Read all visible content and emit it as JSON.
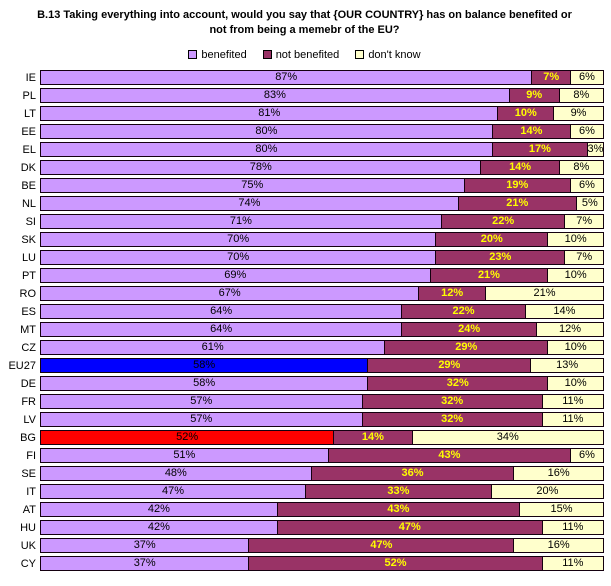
{
  "title": {
    "line1": "B.13 Taking everything into account, would you say that {OUR COUNTRY} has on balance benefited or",
    "line2": "not from being a memebr of the EU?"
  },
  "legend": [
    {
      "key": "benefited",
      "label": "benefited",
      "color": "#CC99FF"
    },
    {
      "key": "not_benefited",
      "label": "not benefited",
      "color": "#993366"
    },
    {
      "key": "dont_know",
      "label": "don't know",
      "color": "#FFFFCC"
    }
  ],
  "chart_data": {
    "type": "bar",
    "orientation": "horizontal",
    "stacked": true,
    "xlim": [
      0,
      100
    ],
    "unit": "%",
    "grid": false,
    "legend_position": "top",
    "categories": [
      "IE",
      "PL",
      "LT",
      "EE",
      "EL",
      "DK",
      "BE",
      "NL",
      "SI",
      "SK",
      "LU",
      "PT",
      "RO",
      "ES",
      "MT",
      "CZ",
      "EU27",
      "DE",
      "FR",
      "LV",
      "BG",
      "FI",
      "SE",
      "IT",
      "AT",
      "HU",
      "UK",
      "CY"
    ],
    "series": [
      {
        "key": "benefited",
        "name": "benefited",
        "color": "#CC99FF",
        "label_color": "#000000",
        "label_bold": false,
        "values": [
          87,
          83,
          81,
          80,
          80,
          78,
          75,
          74,
          71,
          70,
          70,
          69,
          67,
          64,
          64,
          61,
          58,
          58,
          57,
          57,
          52,
          51,
          48,
          47,
          42,
          42,
          37,
          37
        ]
      },
      {
        "key": "not_benefited",
        "name": "not benefited",
        "color": "#993366",
        "label_color": "#FFFF00",
        "label_bold": true,
        "values": [
          7,
          9,
          10,
          14,
          17,
          14,
          19,
          21,
          22,
          20,
          23,
          21,
          12,
          22,
          24,
          29,
          29,
          32,
          32,
          32,
          14,
          43,
          36,
          33,
          43,
          47,
          47,
          52
        ]
      },
      {
        "key": "dont_know",
        "name": "don't know",
        "color": "#FFFFCC",
        "label_color": "#000000",
        "label_bold": false,
        "values": [
          6,
          8,
          9,
          6,
          3,
          8,
          6,
          5,
          7,
          10,
          7,
          10,
          21,
          14,
          12,
          10,
          13,
          10,
          11,
          11,
          34,
          6,
          16,
          20,
          15,
          11,
          16,
          11
        ]
      }
    ],
    "highlighted_categories": {
      "EU27": "#0000FF",
      "BG": "#FF0000"
    }
  }
}
